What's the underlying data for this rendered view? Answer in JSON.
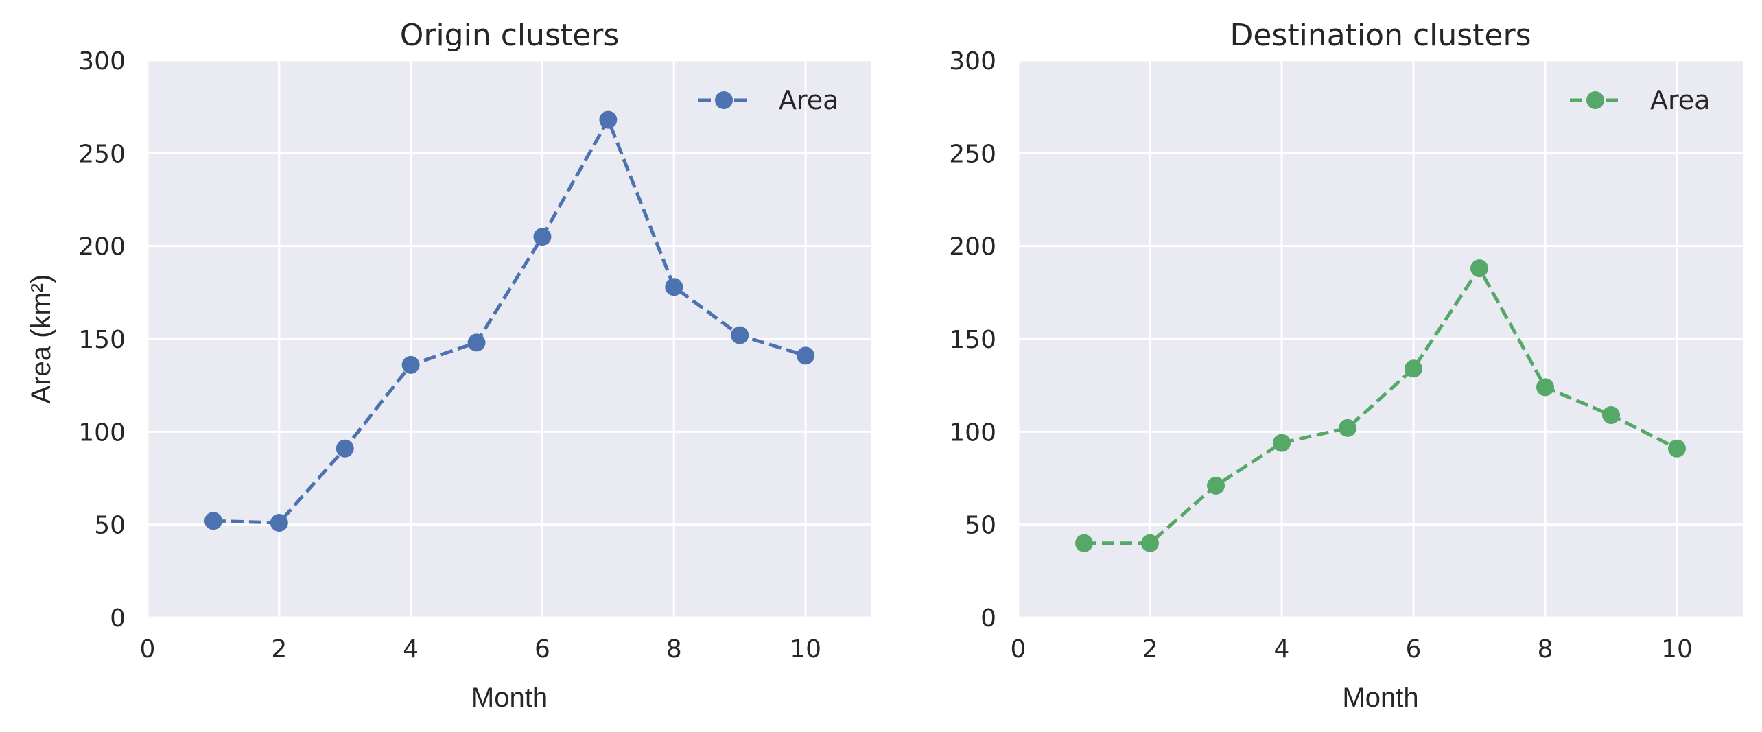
{
  "chart_data": [
    {
      "type": "line",
      "title": "Origin clusters",
      "xlabel": "Month",
      "ylabel": "Area (km²)",
      "xlim": [
        0,
        11
      ],
      "ylim": [
        0,
        300
      ],
      "xticks": [
        "0",
        "2",
        "4",
        "6",
        "8",
        "10"
      ],
      "yticks": [
        "0",
        "50",
        "100",
        "150",
        "200",
        "250",
        "300"
      ],
      "grid": true,
      "legend_position": "top-right",
      "series": [
        {
          "name": "Area",
          "color": "#4c72b0",
          "line_style": "dashed",
          "marker": "circle",
          "x": [
            1,
            2,
            3,
            4,
            5,
            6,
            7,
            8,
            9,
            10
          ],
          "y": [
            52,
            51,
            91,
            136,
            148,
            205,
            268,
            178,
            152,
            141
          ]
        }
      ]
    },
    {
      "type": "line",
      "title": "Destination clusters",
      "xlabel": "Month",
      "ylabel": "",
      "xlim": [
        0,
        11
      ],
      "ylim": [
        0,
        300
      ],
      "xticks": [
        "0",
        "2",
        "4",
        "6",
        "8",
        "10"
      ],
      "yticks": [
        "0",
        "50",
        "100",
        "150",
        "200",
        "250",
        "300"
      ],
      "grid": true,
      "legend_position": "top-right",
      "series": [
        {
          "name": "Area",
          "color": "#55a868",
          "line_style": "dashed",
          "marker": "circle",
          "x": [
            1,
            2,
            3,
            4,
            5,
            6,
            7,
            8,
            9,
            10
          ],
          "y": [
            40,
            40,
            71,
            94,
            102,
            134,
            188,
            124,
            109,
            91
          ]
        }
      ]
    }
  ]
}
